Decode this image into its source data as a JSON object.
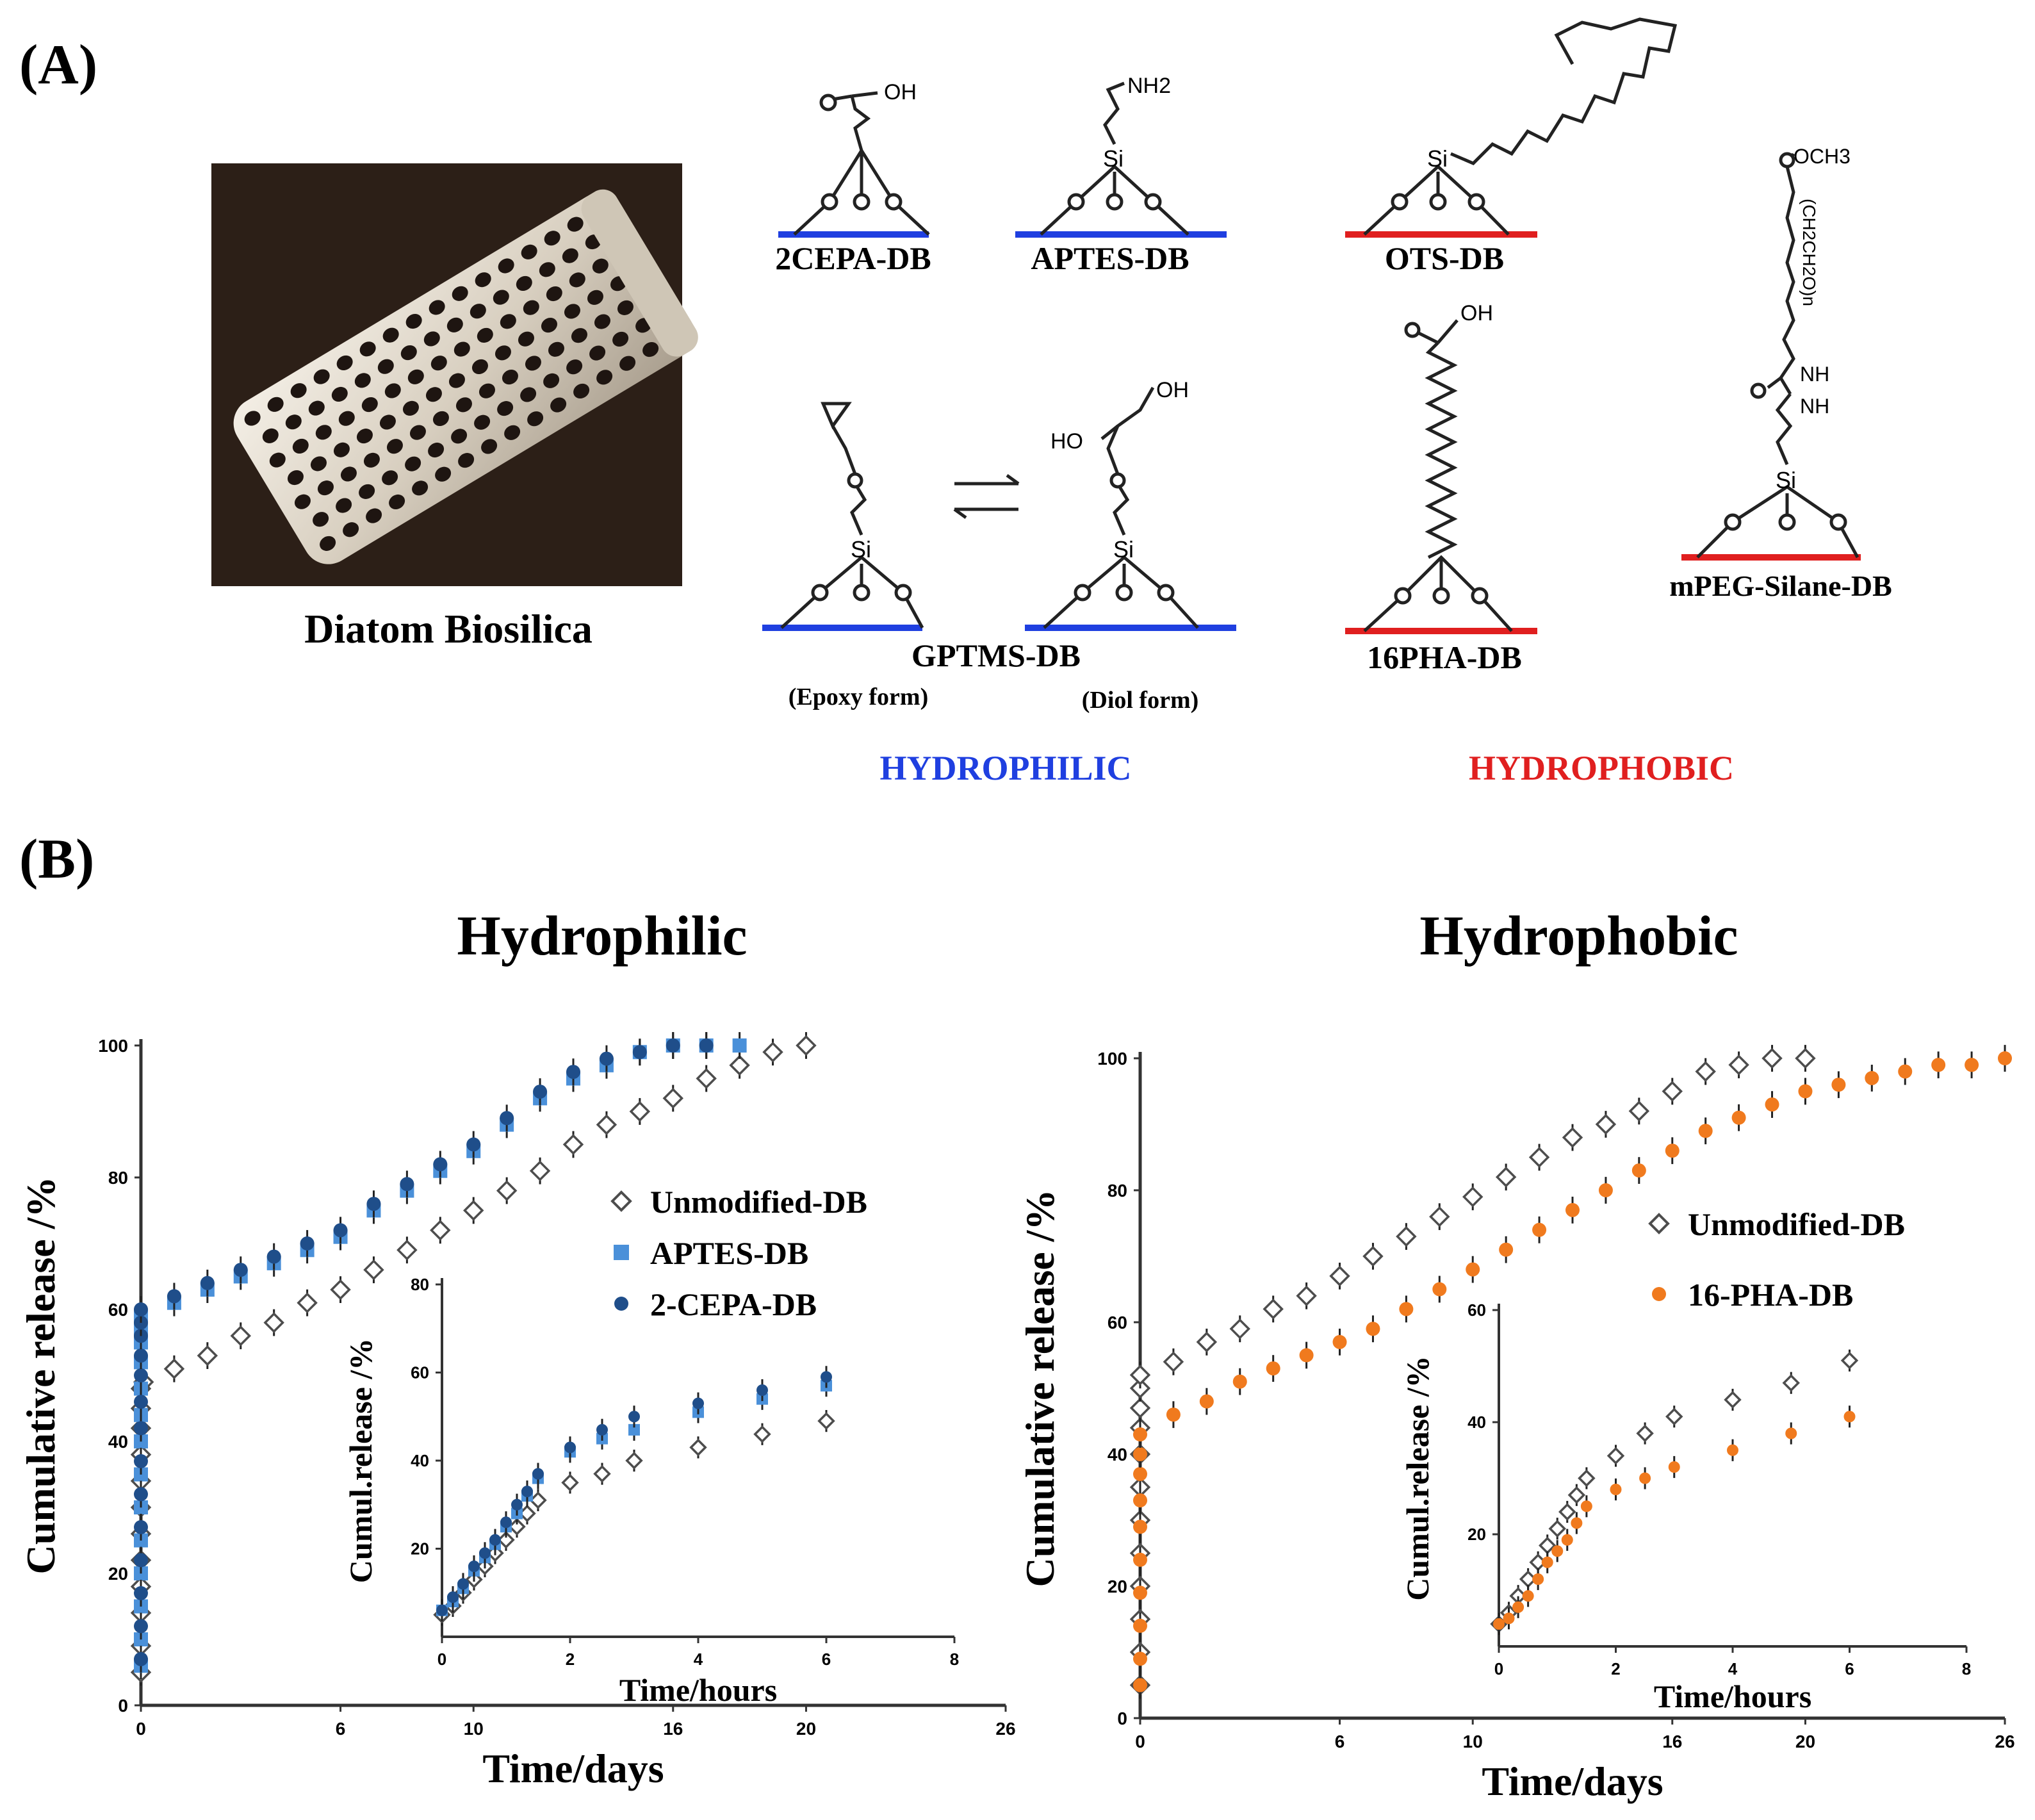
{
  "panel_a": {
    "label": "(A)",
    "photo_caption": "Diatom Biosilica",
    "structures": {
      "cepa": {
        "name": "2CEPA-DB",
        "group": "OH"
      },
      "aptes": {
        "name": "APTES-DB",
        "group": "NH2",
        "si": "Si"
      },
      "ots": {
        "name": "OTS-DB",
        "si": "Si"
      },
      "gptms": {
        "name": "GPTMS-DB",
        "epoxy_form": "(Epoxy form)",
        "diol_form": "(Diol form)",
        "si": "Si",
        "ho": "HO",
        "oh": "OH"
      },
      "pha": {
        "name": "16PHA-DB",
        "group": "OH"
      },
      "mpeg": {
        "name": "mPEG-Silane-DB",
        "och3": "OCH3",
        "peg": "(CH2CH2O)n",
        "nh": "NH",
        "si": "Si"
      }
    },
    "hydrophilic_label": "HYDROPHILIC",
    "hydrophobic_label": "HYDROPHOBIC",
    "colors": {
      "hydrophilic": "#1f3fe0",
      "hydrophobic": "#e01f1f"
    }
  },
  "panel_b": {
    "label": "(B)",
    "left_title": "Hydrophilic",
    "right_title": "Hydrophobic"
  },
  "chart_data": [
    {
      "type": "scatter",
      "panel": "Hydrophilic main",
      "xlabel": "Time/days",
      "ylabel": "Cumulative release /%",
      "xlim": [
        0,
        26
      ],
      "ylim": [
        0,
        100
      ],
      "xticks": [
        0,
        6,
        10,
        16,
        20,
        26
      ],
      "xtick_labels": [
        "0",
        "6",
        "10",
        "16",
        "20",
        "26"
      ],
      "yticks": [
        0,
        20,
        40,
        60,
        80,
        100
      ],
      "legend": "center-right",
      "series": [
        {
          "name": "Unmodified-DB",
          "marker": "diamond",
          "color": "#4d4d4d",
          "x": [
            0,
            0,
            0,
            0,
            0,
            0,
            0,
            0,
            0,
            0,
            0,
            0,
            0.08,
            1,
            2,
            3,
            4,
            5,
            6,
            7,
            8,
            9,
            10,
            11,
            12,
            13,
            14,
            15,
            16,
            17,
            18,
            19,
            20
          ],
          "y": [
            5,
            9,
            14,
            18,
            22,
            26,
            30,
            34,
            38,
            42,
            45,
            48,
            49,
            51,
            53,
            56,
            58,
            61,
            63,
            66,
            69,
            72,
            75,
            78,
            81,
            85,
            88,
            90,
            92,
            95,
            97,
            99,
            100
          ]
        },
        {
          "name": "APTES-DB",
          "marker": "square",
          "color": "#4a90d9",
          "x": [
            0,
            0,
            0,
            0,
            0,
            0,
            0,
            0,
            0,
            0,
            0,
            0,
            0,
            0,
            1,
            2,
            3,
            4,
            5,
            6,
            7,
            8,
            9,
            10,
            11,
            12,
            13,
            14,
            15,
            16,
            17,
            18
          ],
          "y": [
            6,
            10,
            15,
            20,
            25,
            30,
            35,
            40,
            44,
            48,
            52,
            55,
            57,
            59,
            61,
            63,
            65,
            67,
            69,
            71,
            75,
            78,
            81,
            84,
            88,
            92,
            95,
            97,
            99,
            100,
            100,
            100
          ]
        },
        {
          "name": "2-CEPA-DB",
          "marker": "circle",
          "color": "#1f4e8a",
          "x": [
            0,
            0,
            0,
            0,
            0,
            0,
            0,
            0,
            0,
            0,
            0,
            0,
            0,
            0,
            1,
            2,
            3,
            4,
            5,
            6,
            7,
            8,
            9,
            10,
            11,
            12,
            13,
            14,
            15,
            16,
            17
          ],
          "y": [
            7,
            12,
            17,
            22,
            27,
            32,
            37,
            42,
            46,
            50,
            53,
            56,
            58,
            60,
            62,
            64,
            66,
            68,
            70,
            72,
            76,
            79,
            82,
            85,
            89,
            93,
            96,
            98,
            99,
            100,
            100
          ]
        }
      ]
    },
    {
      "type": "scatter",
      "panel": "Hydrophilic inset",
      "xlabel": "Time/hours",
      "ylabel": "Cumul.release /%",
      "xlim": [
        0,
        8
      ],
      "ylim": [
        0,
        80
      ],
      "xticks": [
        0,
        2,
        4,
        6,
        8
      ],
      "yticks": [
        20,
        40,
        60,
        80
      ],
      "series": [
        {
          "name": "Unmodified-DB",
          "marker": "diamond",
          "color": "#4d4d4d",
          "x": [
            0,
            0.17,
            0.33,
            0.5,
            0.67,
            0.83,
            1,
            1.17,
            1.33,
            1.5,
            2,
            2.5,
            3,
            4,
            5,
            6
          ],
          "y": [
            5,
            7,
            10,
            13,
            16,
            19,
            22,
            25,
            28,
            31,
            35,
            37,
            40,
            43,
            46,
            49
          ]
        },
        {
          "name": "APTES-DB",
          "marker": "square",
          "color": "#4a90d9",
          "x": [
            0,
            0.17,
            0.33,
            0.5,
            0.67,
            0.83,
            1,
            1.17,
            1.33,
            1.5,
            2,
            2.5,
            3,
            4,
            5,
            6
          ],
          "y": [
            6,
            8,
            11,
            15,
            18,
            21,
            25,
            28,
            32,
            36,
            42,
            45,
            47,
            51,
            54,
            57
          ]
        },
        {
          "name": "2-CEPA-DB",
          "marker": "circle",
          "color": "#1f4e8a",
          "x": [
            0,
            0.17,
            0.33,
            0.5,
            0.67,
            0.83,
            1,
            1.17,
            1.33,
            1.5,
            2,
            2.5,
            3,
            4,
            5,
            6
          ],
          "y": [
            6,
            9,
            12,
            16,
            19,
            22,
            26,
            30,
            33,
            37,
            43,
            47,
            50,
            53,
            56,
            59
          ]
        }
      ]
    },
    {
      "type": "scatter",
      "panel": "Hydrophobic main",
      "xlabel": "Time/days",
      "ylabel": "Cumulative release /%",
      "xlim": [
        0,
        26
      ],
      "ylim": [
        0,
        100
      ],
      "xticks": [
        0,
        6,
        10,
        16,
        20,
        26
      ],
      "xtick_labels": [
        "0",
        "6",
        "10",
        "16",
        "20",
        "26"
      ],
      "yticks": [
        0,
        20,
        40,
        60,
        80,
        100
      ],
      "legend": "center-right",
      "series": [
        {
          "name": "Unmodified-DB",
          "marker": "diamond",
          "color": "#4d4d4d",
          "x": [
            0,
            0,
            0,
            0,
            0,
            0,
            0,
            0,
            0,
            0,
            0,
            0,
            1,
            2,
            3,
            4,
            5,
            6,
            7,
            8,
            9,
            10,
            11,
            12,
            13,
            14,
            15,
            16,
            17,
            18,
            19,
            20
          ],
          "y": [
            5,
            10,
            15,
            20,
            25,
            30,
            35,
            40,
            44,
            47,
            50,
            52,
            54,
            57,
            59,
            62,
            64,
            67,
            70,
            73,
            76,
            79,
            82,
            85,
            88,
            90,
            92,
            95,
            98,
            99,
            100,
            100
          ]
        },
        {
          "name": "16-PHA-DB",
          "marker": "circle",
          "color": "#f07a1e",
          "x": [
            0,
            0,
            0,
            0,
            0,
            0,
            0,
            0,
            0,
            0,
            1,
            2,
            3,
            4,
            5,
            6,
            7,
            8,
            9,
            10,
            11,
            12,
            13,
            14,
            15,
            16,
            17,
            18,
            19,
            20,
            21,
            22,
            23,
            24,
            25,
            26
          ],
          "y": [
            5,
            9,
            14,
            19,
            24,
            29,
            33,
            37,
            40,
            43,
            46,
            48,
            51,
            53,
            55,
            57,
            59,
            62,
            65,
            68,
            71,
            74,
            77,
            80,
            83,
            86,
            89,
            91,
            93,
            95,
            96,
            97,
            98,
            99,
            99,
            100
          ]
        }
      ]
    },
    {
      "type": "scatter",
      "panel": "Hydrophobic inset",
      "xlabel": "Time/hours",
      "ylabel": "Cumul.release /%",
      "xlim": [
        0,
        8
      ],
      "ylim": [
        0,
        60
      ],
      "xticks": [
        0,
        2,
        4,
        6,
        8
      ],
      "yticks": [
        20,
        40,
        60
      ],
      "series": [
        {
          "name": "Unmodified-DB",
          "marker": "diamond",
          "color": "#4d4d4d",
          "x": [
            0,
            0.17,
            0.33,
            0.5,
            0.67,
            0.83,
            1,
            1.17,
            1.33,
            1.5,
            2,
            2.5,
            3,
            4,
            5,
            6
          ],
          "y": [
            4,
            6,
            9,
            12,
            15,
            18,
            21,
            24,
            27,
            30,
            34,
            38,
            41,
            44,
            47,
            51
          ]
        },
        {
          "name": "16-PHA-DB",
          "marker": "circle",
          "color": "#f07a1e",
          "x": [
            0,
            0.17,
            0.33,
            0.5,
            0.67,
            0.83,
            1,
            1.17,
            1.33,
            1.5,
            2,
            2.5,
            3,
            4,
            5,
            6
          ],
          "y": [
            4,
            5,
            7,
            9,
            12,
            15,
            17,
            19,
            22,
            25,
            28,
            30,
            32,
            35,
            38,
            41
          ]
        }
      ]
    }
  ]
}
